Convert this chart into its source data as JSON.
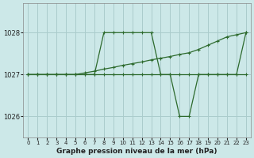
{
  "bg_color": "#cce8e8",
  "grid_color": "#aacccc",
  "line_color": "#2d6a2d",
  "title": "Graphe pression niveau de la mer (hPa)",
  "xlim": [
    -0.5,
    23.5
  ],
  "ylim": [
    1025.5,
    1028.7
  ],
  "yticks": [
    1026,
    1027,
    1028
  ],
  "xticks": [
    0,
    1,
    2,
    3,
    4,
    5,
    6,
    7,
    8,
    9,
    10,
    11,
    12,
    13,
    14,
    15,
    16,
    17,
    18,
    19,
    20,
    21,
    22,
    23
  ],
  "series": [
    {
      "x": [
        0,
        1,
        2,
        3,
        4,
        5,
        6,
        7,
        8,
        9,
        10,
        11,
        12,
        13,
        14,
        15,
        16,
        17,
        18,
        19,
        20,
        21,
        22,
        23
      ],
      "y": [
        1027.0,
        1027.0,
        1027.0,
        1027.0,
        1027.0,
        1027.0,
        1027.0,
        1027.0,
        1027.0,
        1027.0,
        1027.0,
        1027.0,
        1027.0,
        1027.0,
        1027.0,
        1027.0,
        1027.0,
        1027.0,
        1027.0,
        1027.0,
        1027.0,
        1027.0,
        1027.0,
        1027.0
      ]
    },
    {
      "x": [
        0,
        1,
        2,
        3,
        4,
        5,
        6,
        7,
        8,
        9,
        10,
        11,
        12,
        13,
        14,
        15,
        16,
        17,
        18,
        19,
        20,
        21,
        22,
        23
      ],
      "y": [
        1027.0,
        1027.0,
        1027.0,
        1027.0,
        1027.0,
        1027.0,
        1027.0,
        1027.0,
        1028.0,
        1028.0,
        1028.0,
        1028.0,
        1028.0,
        1028.0,
        1027.0,
        1027.0,
        1026.0,
        1026.0,
        1027.0,
        1027.0,
        1027.0,
        1027.0,
        1027.0,
        1028.0
      ]
    },
    {
      "x": [
        0,
        1,
        2,
        3,
        4,
        5,
        6,
        7,
        8,
        9,
        10,
        11,
        12,
        13,
        14,
        15,
        16,
        17,
        18,
        19,
        20,
        21,
        22,
        23
      ],
      "y": [
        1027.0,
        1027.0,
        1027.0,
        1027.0,
        1027.0,
        1027.0,
        1027.04,
        1027.08,
        1027.13,
        1027.17,
        1027.22,
        1027.26,
        1027.3,
        1027.35,
        1027.39,
        1027.43,
        1027.48,
        1027.52,
        1027.6,
        1027.7,
        1027.8,
        1027.9,
        1027.95,
        1028.0
      ]
    }
  ]
}
